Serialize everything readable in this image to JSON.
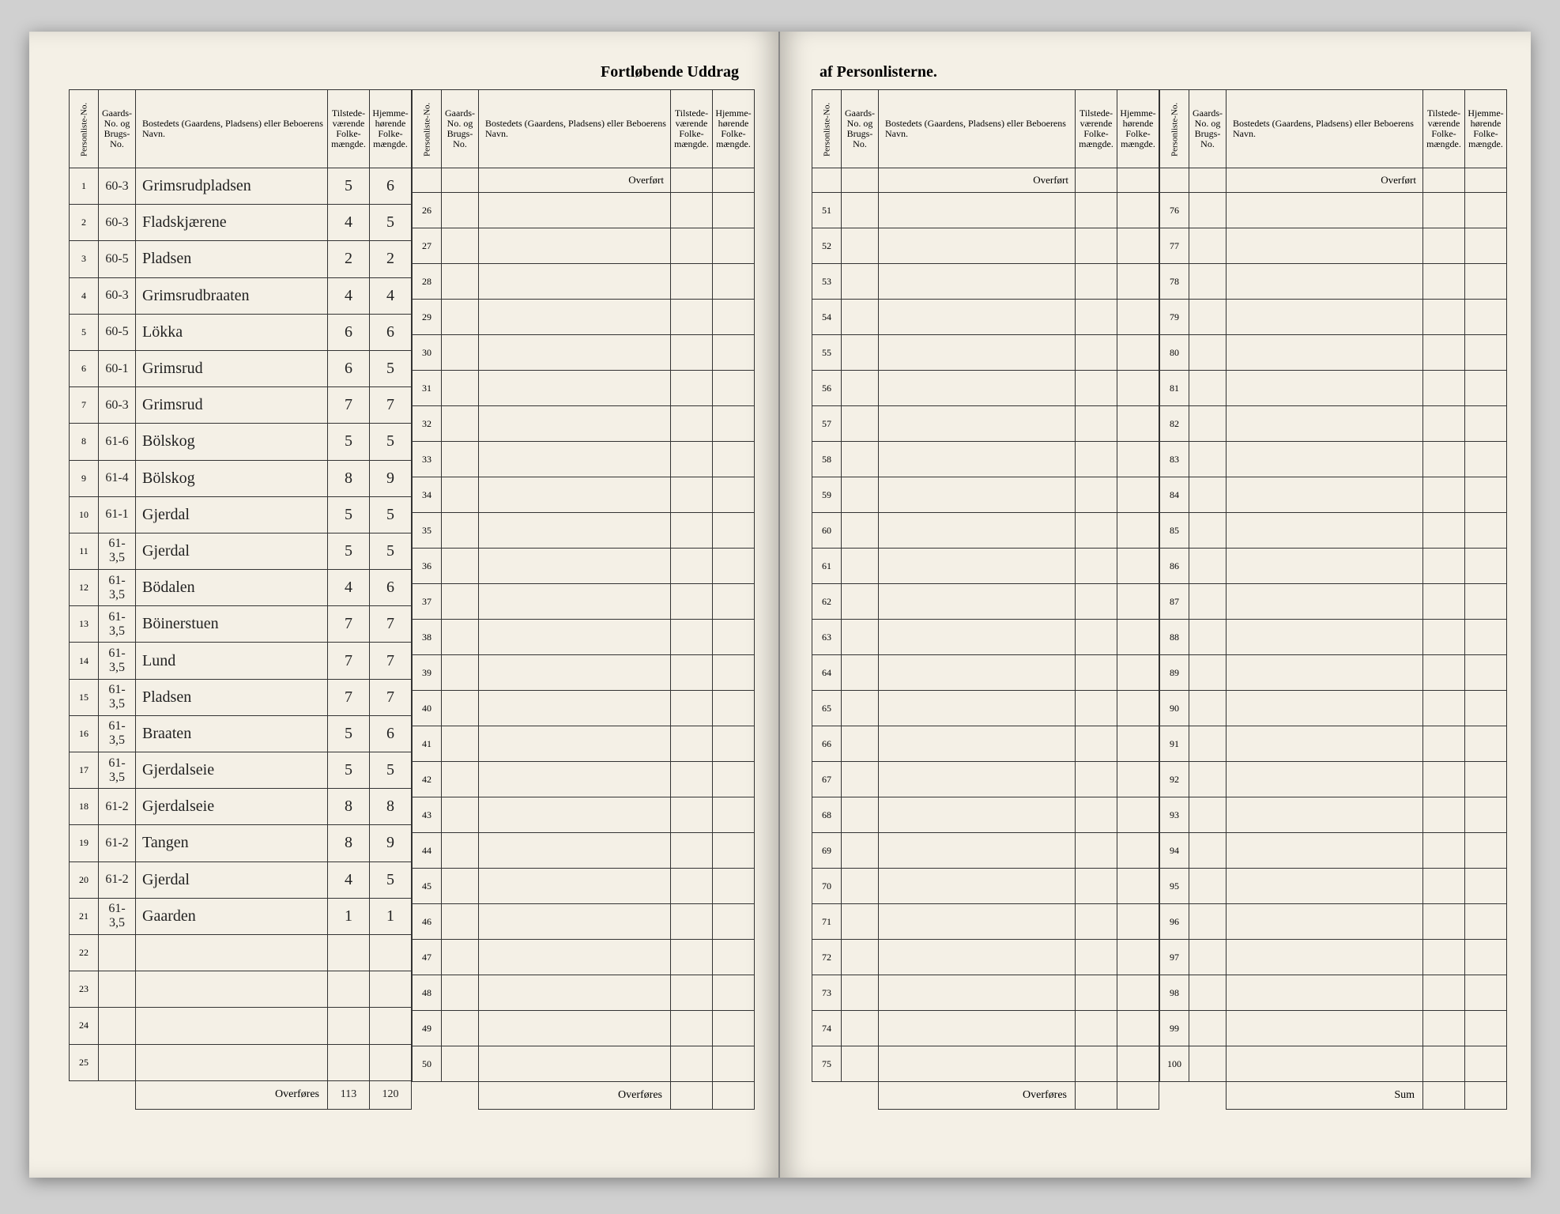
{
  "title_left": "Fortløbende Uddrag",
  "title_right": "af Personlisterne.",
  "headers": {
    "person": "Personliste-No.",
    "gaard": "Gaards-No. og Brugs-No.",
    "bosted": "Bostedets (Gaardens, Pladsens) eller Beboerens Navn.",
    "tilstede": "Tilstede-værende Folke-mængde.",
    "hjemme": "Hjemme-hørende Folke-mængde."
  },
  "overfort": "Overført",
  "overfores": "Overføres",
  "sum": "Sum",
  "totals": {
    "tilstede": "113",
    "hjemme": "120"
  },
  "left_block1": [
    {
      "n": "1",
      "g": "60-3",
      "b": "Grimsrudpladsen",
      "t": "5",
      "h": "6"
    },
    {
      "n": "2",
      "g": "60-3",
      "b": "Fladskjærene",
      "t": "4",
      "h": "5"
    },
    {
      "n": "3",
      "g": "60-5",
      "b": "Pladsen",
      "t": "2",
      "h": "2"
    },
    {
      "n": "4",
      "g": "60-3",
      "b": "Grimsrudbraaten",
      "t": "4",
      "h": "4"
    },
    {
      "n": "5",
      "g": "60-5",
      "b": "Lökka",
      "t": "6",
      "h": "6"
    },
    {
      "n": "6",
      "g": "60-1",
      "b": "Grimsrud",
      "t": "6",
      "h": "5"
    },
    {
      "n": "7",
      "g": "60-3",
      "b": "Grimsrud",
      "t": "7",
      "h": "7"
    },
    {
      "n": "8",
      "g": "61-6",
      "b": "Bölskog",
      "t": "5",
      "h": "5"
    },
    {
      "n": "9",
      "g": "61-4",
      "b": "Bölskog",
      "t": "8",
      "h": "9"
    },
    {
      "n": "10",
      "g": "61-1",
      "b": "Gjerdal",
      "t": "5",
      "h": "5"
    },
    {
      "n": "11",
      "g": "61-3,5",
      "b": "Gjerdal",
      "t": "5",
      "h": "5"
    },
    {
      "n": "12",
      "g": "61-3,5",
      "b": "Bödalen",
      "t": "4",
      "h": "6"
    },
    {
      "n": "13",
      "g": "61-3,5",
      "b": "Böinerstuen",
      "t": "7",
      "h": "7"
    },
    {
      "n": "14",
      "g": "61-3,5",
      "b": "Lund",
      "t": "7",
      "h": "7"
    },
    {
      "n": "15",
      "g": "61-3,5",
      "b": "Pladsen",
      "t": "7",
      "h": "7"
    },
    {
      "n": "16",
      "g": "61-3,5",
      "b": "Braaten",
      "t": "5",
      "h": "6"
    },
    {
      "n": "17",
      "g": "61-3,5",
      "b": "Gjerdalseie",
      "t": "5",
      "h": "5"
    },
    {
      "n": "18",
      "g": "61-2",
      "b": "Gjerdalseie",
      "t": "8",
      "h": "8"
    },
    {
      "n": "19",
      "g": "61-2",
      "b": "Tangen",
      "t": "8",
      "h": "9"
    },
    {
      "n": "20",
      "g": "61-2",
      "b": "Gjerdal",
      "t": "4",
      "h": "5"
    },
    {
      "n": "21",
      "g": "61-3,5",
      "b": "Gaarden",
      "t": "1",
      "h": "1"
    },
    {
      "n": "22",
      "g": "",
      "b": "",
      "t": "",
      "h": ""
    },
    {
      "n": "23",
      "g": "",
      "b": "",
      "t": "",
      "h": ""
    },
    {
      "n": "24",
      "g": "",
      "b": "",
      "t": "",
      "h": ""
    },
    {
      "n": "25",
      "g": "",
      "b": "",
      "t": "",
      "h": ""
    }
  ],
  "left_block2_start": 26,
  "right_block1_start": 51,
  "right_block2_start": 76
}
